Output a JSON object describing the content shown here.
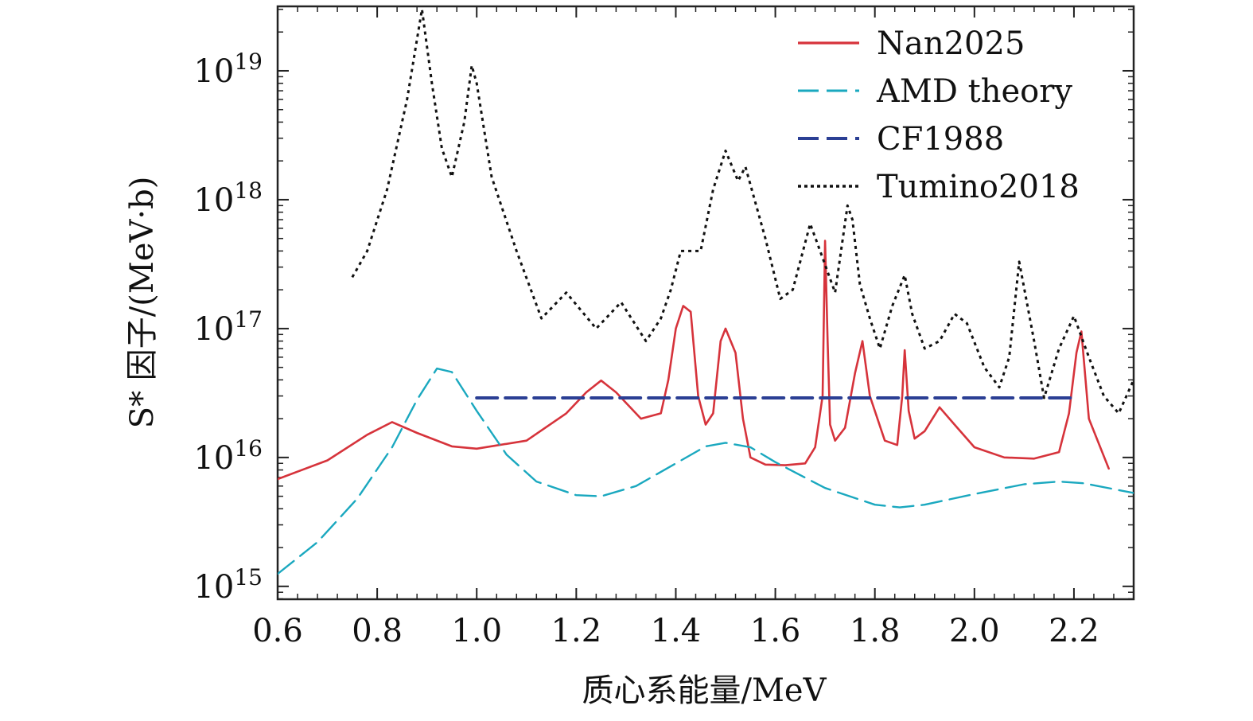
{
  "chart_data": {
    "type": "line",
    "title": "",
    "xlabel": "质心系能量/MeV",
    "ylabel": "S* 因子/(MeV·b)",
    "xlim": [
      0.6,
      2.32
    ],
    "ylim_log10": [
      14.9,
      19.5
    ],
    "yscale": "log",
    "x_ticks": [
      "0.6",
      "0.8",
      "1.0",
      "1.2",
      "1.4",
      "1.6",
      "1.8",
      "2.0",
      "2.2"
    ],
    "x_tick_values": [
      0.6,
      0.8,
      1.0,
      1.2,
      1.4,
      1.6,
      1.8,
      2.0,
      2.2
    ],
    "y_tick_exponents": [
      15,
      16,
      17,
      18,
      19
    ],
    "y_tick_base": "10",
    "legend_position": "top-right",
    "series": [
      {
        "name": "Nan2025",
        "color": "#d6333b",
        "style": "solid",
        "x": [
          0.6,
          0.7,
          0.78,
          0.83,
          0.88,
          0.95,
          1.0,
          1.1,
          1.18,
          1.22,
          1.25,
          1.28,
          1.33,
          1.37,
          1.385,
          1.4,
          1.415,
          1.43,
          1.445,
          1.46,
          1.475,
          1.49,
          1.5,
          1.52,
          1.535,
          1.55,
          1.58,
          1.62,
          1.66,
          1.68,
          1.695,
          1.7,
          1.705,
          1.71,
          1.72,
          1.74,
          1.76,
          1.775,
          1.79,
          1.82,
          1.845,
          1.855,
          1.86,
          1.868,
          1.88,
          1.9,
          1.93,
          1.96,
          2.0,
          2.06,
          2.12,
          2.17,
          2.19,
          2.205,
          2.215,
          2.23,
          2.27
        ],
        "y": [
          6800000000000000.0,
          9500000000000000.0,
          1.5e+16,
          1.88e+16,
          1.55e+16,
          1.22e+16,
          1.17e+16,
          1.35e+16,
          2.2e+16,
          3.2e+16,
          3.95e+16,
          3.2e+16,
          2e+16,
          2.2e+16,
          4e+16,
          1e+17,
          1.5e+17,
          1.35e+17,
          3e+16,
          1.8e+16,
          2.2e+16,
          8e+16,
          1e+17,
          6.5e+16,
          2e+16,
          1e+16,
          8800000000000000.0,
          8700000000000000.0,
          9000000000000000.0,
          1.2e+16,
          3e+16,
          4.8e+17,
          8e+16,
          1.8e+16,
          1.35e+16,
          1.7e+16,
          4.5e+16,
          8e+16,
          3e+16,
          1.35e+16,
          1.25e+16,
          3e+16,
          6.8e+16,
          2.3e+16,
          1.4e+16,
          1.6e+16,
          2.45e+16,
          1.8e+16,
          1.2e+16,
          1e+16,
          9800000000000000.0,
          1.1e+16,
          2.2e+16,
          6.5e+16,
          9.5e+16,
          2e+16,
          8200000000000000.0
        ]
      },
      {
        "name": "AMD theory",
        "color": "#1aa8bf",
        "style": "dashed",
        "x": [
          0.6,
          0.68,
          0.76,
          0.83,
          0.88,
          0.92,
          0.95,
          1.0,
          1.06,
          1.12,
          1.2,
          1.25,
          1.32,
          1.4,
          1.46,
          1.5,
          1.55,
          1.6,
          1.7,
          1.8,
          1.85,
          1.9,
          2.0,
          2.1,
          2.17,
          2.22,
          2.32
        ],
        "y": [
          1250000000000000.0,
          2200000000000000.0,
          4800000000000000.0,
          1.2e+16,
          2.8e+16,
          4.9e+16,
          4.6e+16,
          2.3e+16,
          1.05e+16,
          6500000000000000.0,
          5100000000000000.0,
          5000000000000000.0,
          6000000000000000.0,
          9000000000000000.0,
          1.22e+16,
          1.3e+16,
          1.2e+16,
          9200000000000000.0,
          5800000000000000.0,
          4300000000000000.0,
          4100000000000000.0,
          4300000000000000.0,
          5200000000000000.0,
          6200000000000000.0,
          6500000000000000.0,
          6300000000000000.0,
          5300000000000000.0
        ]
      },
      {
        "name": "CF1988",
        "color": "#2b3f94",
        "style": "dashed",
        "x": [
          1.0,
          2.2
        ],
        "y": [
          2.9e+16,
          2.9e+16
        ]
      },
      {
        "name": "Tumino2018",
        "color": "#111111",
        "style": "dotted",
        "x": [
          0.75,
          0.78,
          0.82,
          0.86,
          0.89,
          0.91,
          0.93,
          0.95,
          0.975,
          0.99,
          1.0,
          1.03,
          1.08,
          1.13,
          1.18,
          1.24,
          1.29,
          1.34,
          1.37,
          1.39,
          1.41,
          1.45,
          1.475,
          1.5,
          1.525,
          1.54,
          1.58,
          1.61,
          1.635,
          1.67,
          1.69,
          1.72,
          1.745,
          1.755,
          1.77,
          1.79,
          1.81,
          1.835,
          1.86,
          1.875,
          1.9,
          1.93,
          1.96,
          1.985,
          2.02,
          2.05,
          2.07,
          2.09,
          2.12,
          2.14,
          2.17,
          2.2,
          2.23,
          2.26,
          2.29,
          2.32
        ],
        "y": [
          2.5e+17,
          4e+17,
          1.2e+18,
          6e+18,
          3e+19,
          8e+18,
          2.5e+18,
          1.5e+18,
          4e+18,
          1.1e+19,
          8e+18,
          1.5e+18,
          4e+17,
          1.2e+17,
          1.9e+17,
          1e+17,
          1.6e+17,
          8e+16,
          1.2e+17,
          2e+17,
          4e+17,
          4e+17,
          1.2e+18,
          2.4e+18,
          1.4e+18,
          1.8e+18,
          5e+17,
          1.7e+17,
          2e+17,
          6.5e+17,
          4e+17,
          1.9e+17,
          9e+17,
          7e+17,
          2.2e+17,
          1.2e+17,
          7e+16,
          1.5e+17,
          2.6e+17,
          1.3e+17,
          7e+16,
          8e+16,
          1.3e+17,
          1.1e+17,
          5e+16,
          3.5e+16,
          6e+16,
          3.3e+17,
          8e+16,
          2.9e+16,
          7e+16,
          1.25e+17,
          6e+16,
          3e+16,
          2.2e+16,
          4e+16
        ]
      }
    ]
  }
}
